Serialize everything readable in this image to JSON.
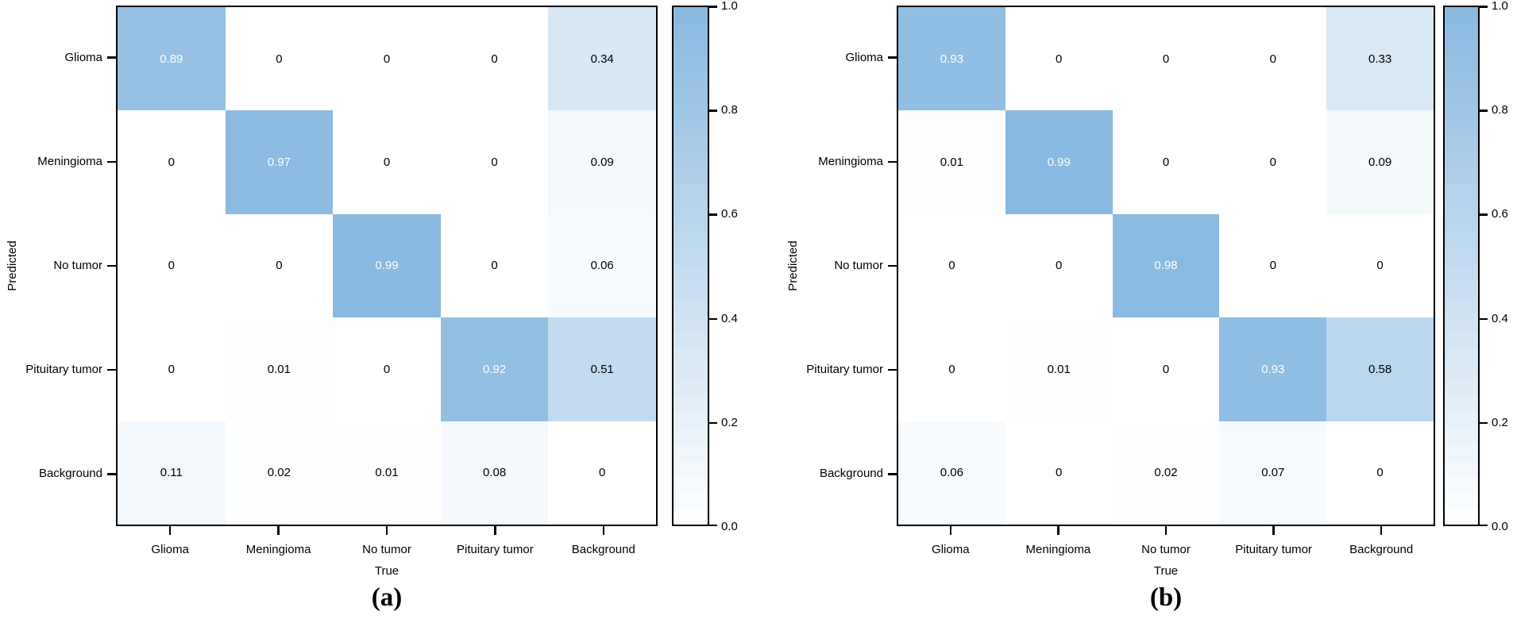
{
  "chart_data": [
    {
      "type": "heatmap",
      "caption": "(a)",
      "xlabel": "True",
      "ylabel": "Predicted",
      "x_categories": [
        "Glioma",
        "Meningioma",
        "No tumor",
        "Pituitary tumor",
        "Background"
      ],
      "y_categories": [
        "Glioma",
        "Meningioma",
        "No tumor",
        "Pituitary tumor",
        "Background"
      ],
      "matrix": [
        [
          0.89,
          0,
          0,
          0,
          0.34
        ],
        [
          0,
          0.97,
          0,
          0,
          0.09
        ],
        [
          0,
          0,
          0.99,
          0,
          0.06
        ],
        [
          0,
          0.01,
          0,
          0.92,
          0.51
        ],
        [
          0.11,
          0.02,
          0.01,
          0.08,
          0
        ]
      ],
      "colorbar": {
        "ticks": [
          "1.0",
          "0.8",
          "0.6",
          "0.4",
          "0.2",
          "0.0"
        ],
        "range": [
          0,
          1
        ]
      },
      "value_range": [
        0,
        1
      ],
      "grid": false,
      "legend_position": "right-colorbar"
    },
    {
      "type": "heatmap",
      "caption": "(b)",
      "xlabel": "True",
      "ylabel": "Predicted",
      "x_categories": [
        "Glioma",
        "Meningioma",
        "No tumor",
        "Pituitary tumor",
        "Background"
      ],
      "y_categories": [
        "Glioma",
        "Meningioma",
        "No tumor",
        "Pituitary tumor",
        "Background"
      ],
      "matrix": [
        [
          0.93,
          0,
          0,
          0,
          0.33
        ],
        [
          0.01,
          0.99,
          0,
          0,
          0.09
        ],
        [
          0,
          0,
          0.98,
          0,
          0
        ],
        [
          0,
          0.01,
          0,
          0.93,
          0.58
        ],
        [
          0.06,
          0,
          0.02,
          0.07,
          0
        ]
      ],
      "colorbar": {
        "ticks": [
          "1.0",
          "0.8",
          "0.6",
          "0.4",
          "0.2",
          "0.0"
        ],
        "range": [
          0,
          1
        ]
      },
      "value_range": [
        0,
        1
      ],
      "grid": false,
      "legend_position": "right-colorbar"
    }
  ],
  "style": {
    "colormap_low": "#ffffff",
    "colormap_high": "#88b8e0",
    "cell_text_dark": "#000000",
    "cell_text_light": "#ffffff",
    "axis_color": "#000000",
    "background": "#ffffff"
  }
}
